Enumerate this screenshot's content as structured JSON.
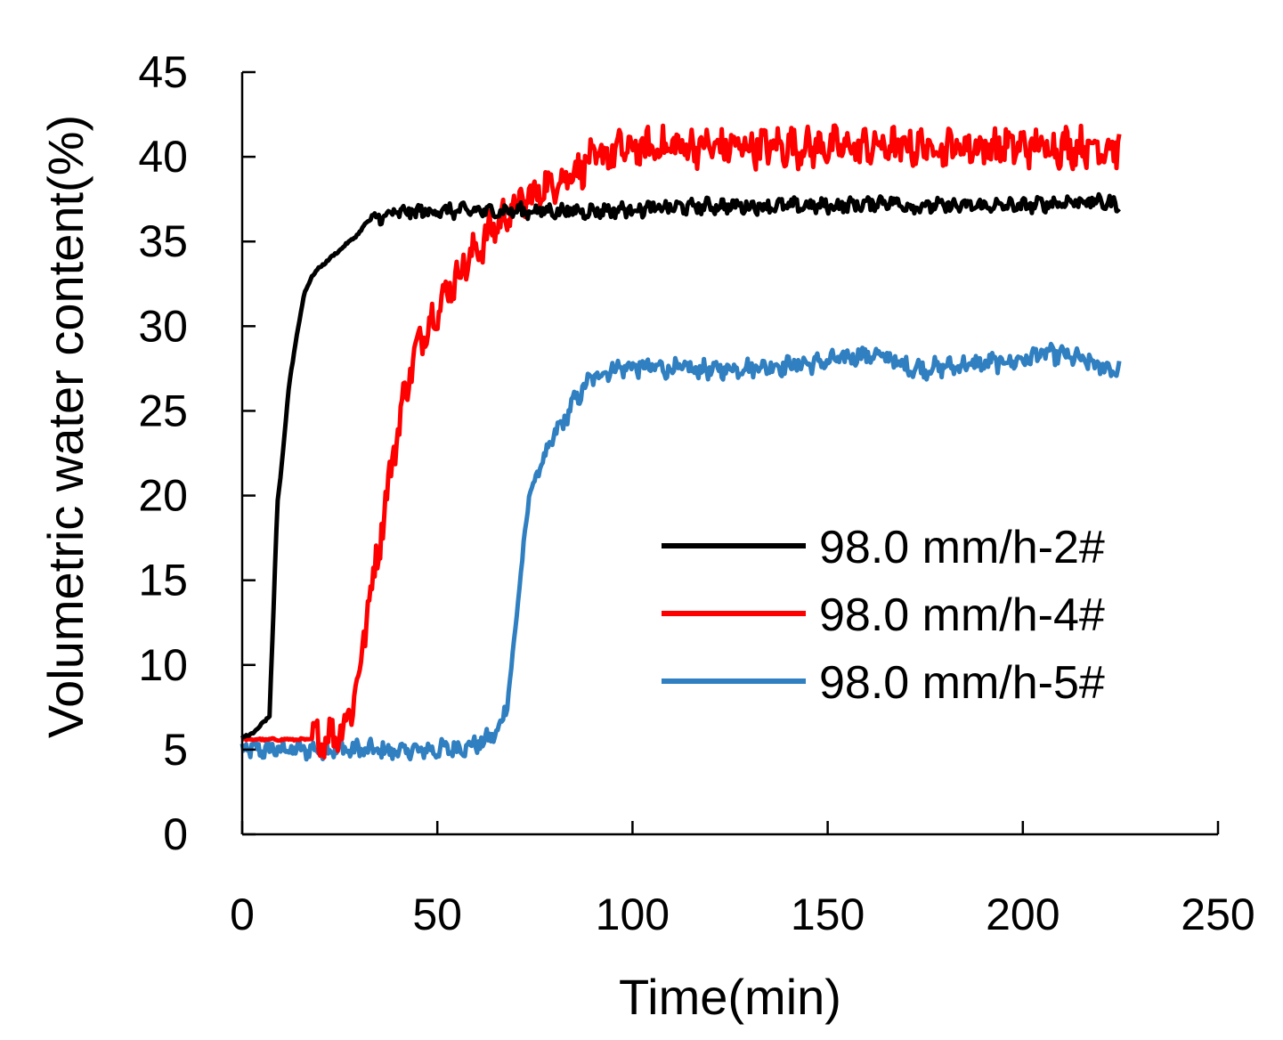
{
  "chart_data": {
    "type": "line",
    "title": "",
    "xlabel": "Time(min)",
    "ylabel": "Volumetric water content(%)",
    "xlim": [
      0,
      250
    ],
    "ylim": [
      0,
      45
    ],
    "xticks": [
      0,
      50,
      100,
      150,
      200,
      250
    ],
    "yticks": [
      0,
      5,
      10,
      15,
      20,
      25,
      30,
      35,
      40,
      45
    ],
    "grid": false,
    "legend_position": "center-right",
    "series": [
      {
        "name": "98.0 mm/h-2#",
        "color": "#000000",
        "x": [
          0,
          3,
          5,
          7,
          8,
          9,
          10,
          12,
          14,
          16,
          18,
          20,
          25,
          30,
          32,
          35,
          40,
          50,
          60,
          70,
          80,
          90,
          100,
          110,
          120,
          130,
          140,
          150,
          160,
          165,
          170,
          180,
          190,
          200,
          210,
          215,
          225
        ],
        "y": [
          5.7,
          6.0,
          6.5,
          7.0,
          13,
          19.5,
          21.5,
          26.5,
          29.5,
          32,
          33,
          33.5,
          34.5,
          35.5,
          36.2,
          36.4,
          36.7,
          36.8,
          36.8,
          36.8,
          36.8,
          36.8,
          36.9,
          37.0,
          37.1,
          37.1,
          37.1,
          37.1,
          37.2,
          37.4,
          37.1,
          37.1,
          37.1,
          37.1,
          37.3,
          37.4,
          37.2
        ],
        "noise": 0.35
      },
      {
        "name": "98.0 mm/h-4#",
        "color": "#ff0000",
        "x": [
          0,
          10,
          17,
          20,
          25,
          28,
          30,
          32,
          33,
          35,
          37,
          38,
          40,
          42,
          44,
          46,
          50,
          55,
          60,
          65,
          70,
          75,
          80,
          85,
          90,
          95,
          100,
          110,
          120,
          130,
          140,
          150,
          160,
          170,
          180,
          190,
          200,
          210,
          220,
          225
        ],
        "y": [
          5.6,
          5.6,
          5.6,
          5.7,
          6.0,
          7.5,
          9.5,
          13.0,
          14.5,
          17.0,
          20.0,
          21.5,
          24.0,
          26.5,
          28.0,
          29.5,
          31.0,
          33.0,
          34.5,
          36.0,
          37.0,
          37.8,
          38.5,
          39.2,
          39.8,
          40.3,
          40.5,
          40.6,
          40.6,
          40.6,
          40.6,
          40.6,
          40.6,
          40.6,
          40.6,
          40.6,
          40.6,
          40.6,
          40.6,
          40.6
        ],
        "noise": 0.9
      },
      {
        "name": "98.0 mm/h-5#",
        "color": "#2f7fc1",
        "x": [
          0,
          30,
          40,
          50,
          55,
          60,
          63,
          66,
          68,
          70,
          72,
          74,
          76,
          78,
          80,
          85,
          88,
          90,
          95,
          100,
          110,
          120,
          130,
          140,
          150,
          158,
          165,
          170,
          175,
          180,
          190,
          200,
          205,
          210,
          215,
          220,
          225
        ],
        "y": [
          5.0,
          5.0,
          4.9,
          5.0,
          5.1,
          5.3,
          5.6,
          6.2,
          8.0,
          12.0,
          17.0,
          20.5,
          21.5,
          22.5,
          23.5,
          25.5,
          26.5,
          27.0,
          27.5,
          27.6,
          27.5,
          27.4,
          27.6,
          27.7,
          27.9,
          28.3,
          28.2,
          27.6,
          27.5,
          27.6,
          27.8,
          28.0,
          28.4,
          28.3,
          28.0,
          27.6,
          27.4
        ],
        "noise": 0.45
      }
    ]
  }
}
